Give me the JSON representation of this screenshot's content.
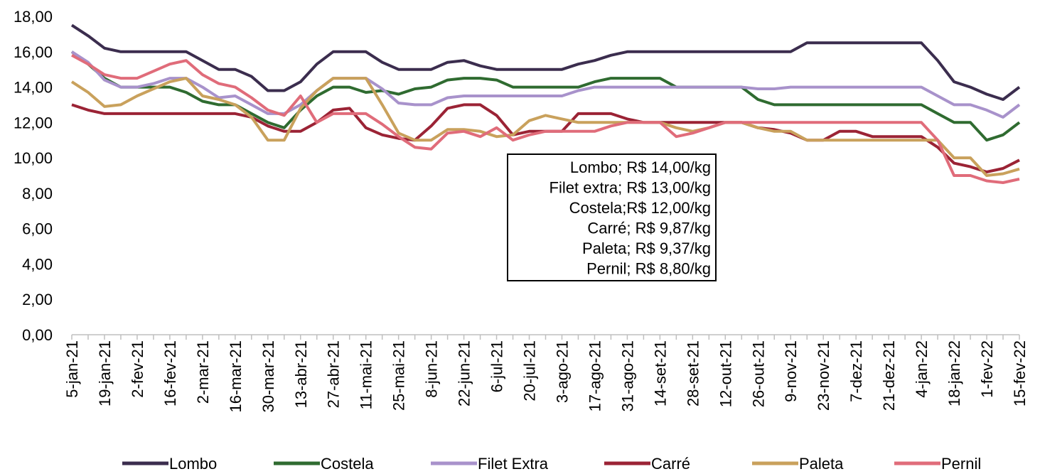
{
  "chart_data": {
    "type": "line",
    "categories": [
      "5-jan-21",
      null,
      "19-jan-21",
      null,
      "2-fev-21",
      null,
      "16-fev-21",
      null,
      "2-mar-21",
      null,
      "16-mar-21",
      null,
      "30-mar-21",
      null,
      "13-abr-21",
      null,
      "27-abr-21",
      null,
      "11-mai-21",
      null,
      "25-mai-21",
      null,
      "8-jun-21",
      null,
      "22-jun-21",
      null,
      "6-jul-21",
      null,
      "20-jul-21",
      null,
      "3-ago-21",
      null,
      "17-ago-21",
      null,
      "31-ago-21",
      null,
      "14-set-21",
      null,
      "28-set-21",
      null,
      "12-out-21",
      null,
      "26-out-21",
      null,
      "9-nov-21",
      null,
      "23-nov-21",
      null,
      "7-dez-21",
      null,
      "21-dez-21",
      null,
      "4-jan-22",
      null,
      "18-jan-22",
      null,
      "1-fev-22",
      null,
      "15-fev-22"
    ],
    "series": [
      {
        "name": "Lombo",
        "color": "#3b2d4e",
        "values": [
          17.5,
          16.9,
          16.2,
          16.0,
          16.0,
          16.0,
          16.0,
          16.0,
          15.5,
          15.0,
          15.0,
          14.6,
          13.8,
          13.8,
          14.3,
          15.3,
          16.0,
          16.0,
          16.0,
          15.4,
          15.0,
          15.0,
          15.0,
          15.4,
          15.5,
          15.2,
          15.0,
          15.0,
          15.0,
          15.0,
          15.0,
          15.3,
          15.5,
          15.8,
          16.0,
          16.0,
          16.0,
          16.0,
          16.0,
          16.0,
          16.0,
          16.0,
          16.0,
          16.0,
          16.0,
          16.5,
          16.5,
          16.5,
          16.5,
          16.5,
          16.5,
          16.5,
          16.5,
          15.5,
          14.3,
          14.0,
          13.6,
          13.3,
          14.0
        ]
      },
      {
        "name": "Costela",
        "color": "#2f6b30",
        "values": [
          16.0,
          15.3,
          14.5,
          14.0,
          14.0,
          14.0,
          14.0,
          13.7,
          13.2,
          13.0,
          13.0,
          12.5,
          12.0,
          11.7,
          12.7,
          13.5,
          14.0,
          14.0,
          13.7,
          13.8,
          13.6,
          13.9,
          14.0,
          14.4,
          14.5,
          14.5,
          14.4,
          14.0,
          14.0,
          14.0,
          14.0,
          14.0,
          14.3,
          14.5,
          14.5,
          14.5,
          14.5,
          14.0,
          14.0,
          14.0,
          14.0,
          14.0,
          13.3,
          13.0,
          13.0,
          13.0,
          13.0,
          13.0,
          13.0,
          13.0,
          13.0,
          13.0,
          13.0,
          12.5,
          12.0,
          12.0,
          11.0,
          11.3,
          12.0
        ]
      },
      {
        "name": "Filet Extra",
        "color": "#a892cb",
        "values": [
          16.0,
          15.4,
          14.4,
          14.0,
          14.0,
          14.2,
          14.5,
          14.5,
          14.0,
          13.4,
          13.5,
          13.0,
          12.5,
          12.5,
          13.0,
          13.8,
          14.5,
          14.5,
          14.5,
          13.9,
          13.1,
          13.0,
          13.0,
          13.4,
          13.5,
          13.5,
          13.5,
          13.5,
          13.5,
          13.5,
          13.5,
          13.8,
          14.0,
          14.0,
          14.0,
          14.0,
          14.0,
          14.0,
          14.0,
          14.0,
          14.0,
          14.0,
          13.9,
          13.9,
          14.0,
          14.0,
          14.0,
          14.0,
          14.0,
          14.0,
          14.0,
          14.0,
          14.0,
          13.5,
          13.0,
          13.0,
          12.7,
          12.3,
          13.0
        ]
      },
      {
        "name": "Carré",
        "color": "#9b2335",
        "values": [
          13.0,
          12.7,
          12.5,
          12.5,
          12.5,
          12.5,
          12.5,
          12.5,
          12.5,
          12.5,
          12.5,
          12.3,
          11.8,
          11.5,
          11.5,
          12.0,
          12.7,
          12.8,
          11.7,
          11.3,
          11.1,
          11.0,
          11.8,
          12.8,
          13.0,
          13.0,
          12.4,
          11.3,
          11.5,
          11.5,
          11.5,
          12.5,
          12.5,
          12.5,
          12.2,
          12.0,
          12.0,
          12.0,
          12.0,
          12.0,
          12.0,
          12.0,
          11.7,
          11.6,
          11.4,
          11.0,
          11.0,
          11.5,
          11.5,
          11.2,
          11.2,
          11.2,
          11.2,
          10.6,
          9.7,
          9.5,
          9.2,
          9.4,
          9.87
        ]
      },
      {
        "name": "Paleta",
        "color": "#c9a15c",
        "values": [
          14.3,
          13.7,
          12.9,
          13.0,
          13.5,
          13.9,
          14.3,
          14.5,
          13.5,
          13.3,
          13.0,
          12.3,
          11.0,
          11.0,
          12.8,
          13.8,
          14.5,
          14.5,
          14.5,
          13.0,
          11.4,
          11.0,
          11.0,
          11.6,
          11.6,
          11.5,
          11.2,
          11.3,
          12.1,
          12.4,
          12.2,
          12.0,
          12.0,
          12.0,
          12.0,
          12.0,
          12.0,
          11.7,
          11.5,
          11.7,
          12.0,
          12.0,
          11.7,
          11.5,
          11.5,
          11.0,
          11.0,
          11.0,
          11.0,
          11.0,
          11.0,
          11.0,
          11.0,
          11.0,
          10.0,
          10.0,
          9.0,
          9.1,
          9.37
        ]
      },
      {
        "name": "Pernil",
        "color": "#e06c7a",
        "values": [
          15.8,
          15.3,
          14.7,
          14.5,
          14.5,
          14.9,
          15.3,
          15.5,
          14.7,
          14.2,
          14.0,
          13.4,
          12.7,
          12.4,
          13.5,
          12.0,
          12.5,
          12.5,
          12.5,
          11.9,
          11.2,
          10.6,
          10.5,
          11.4,
          11.5,
          11.2,
          11.7,
          11.0,
          11.3,
          11.5,
          11.5,
          11.5,
          11.5,
          11.8,
          12.0,
          12.0,
          12.0,
          11.2,
          11.4,
          11.7,
          12.0,
          12.0,
          12.0,
          12.0,
          12.0,
          12.0,
          12.0,
          12.0,
          12.0,
          12.0,
          12.0,
          12.0,
          12.0,
          11.0,
          9.0,
          9.0,
          8.7,
          8.6,
          8.8
        ]
      }
    ],
    "ylim": [
      0,
      18
    ],
    "yticks": [
      {
        "value": 0,
        "label": "0,00"
      },
      {
        "value": 2,
        "label": "2,00"
      },
      {
        "value": 4,
        "label": "4,00"
      },
      {
        "value": 6,
        "label": "6,00"
      },
      {
        "value": 8,
        "label": "8,00"
      },
      {
        "value": 10,
        "label": "10,00"
      },
      {
        "value": 12,
        "label": "12,00"
      },
      {
        "value": 14,
        "label": "14,00"
      },
      {
        "value": 16,
        "label": "16,00"
      },
      {
        "value": 18,
        "label": "18,00"
      }
    ],
    "grid": false,
    "legend": "bottom",
    "annotations": [
      "Lombo; R$ 14,00/kg",
      "Filet extra; R$ 13,00/kg",
      "Costela;R$ 12,00/kg",
      "Carré; R$ 9,87/kg",
      "Paleta; R$ 9,37/kg",
      "Pernil; R$ 8,80/kg"
    ]
  }
}
